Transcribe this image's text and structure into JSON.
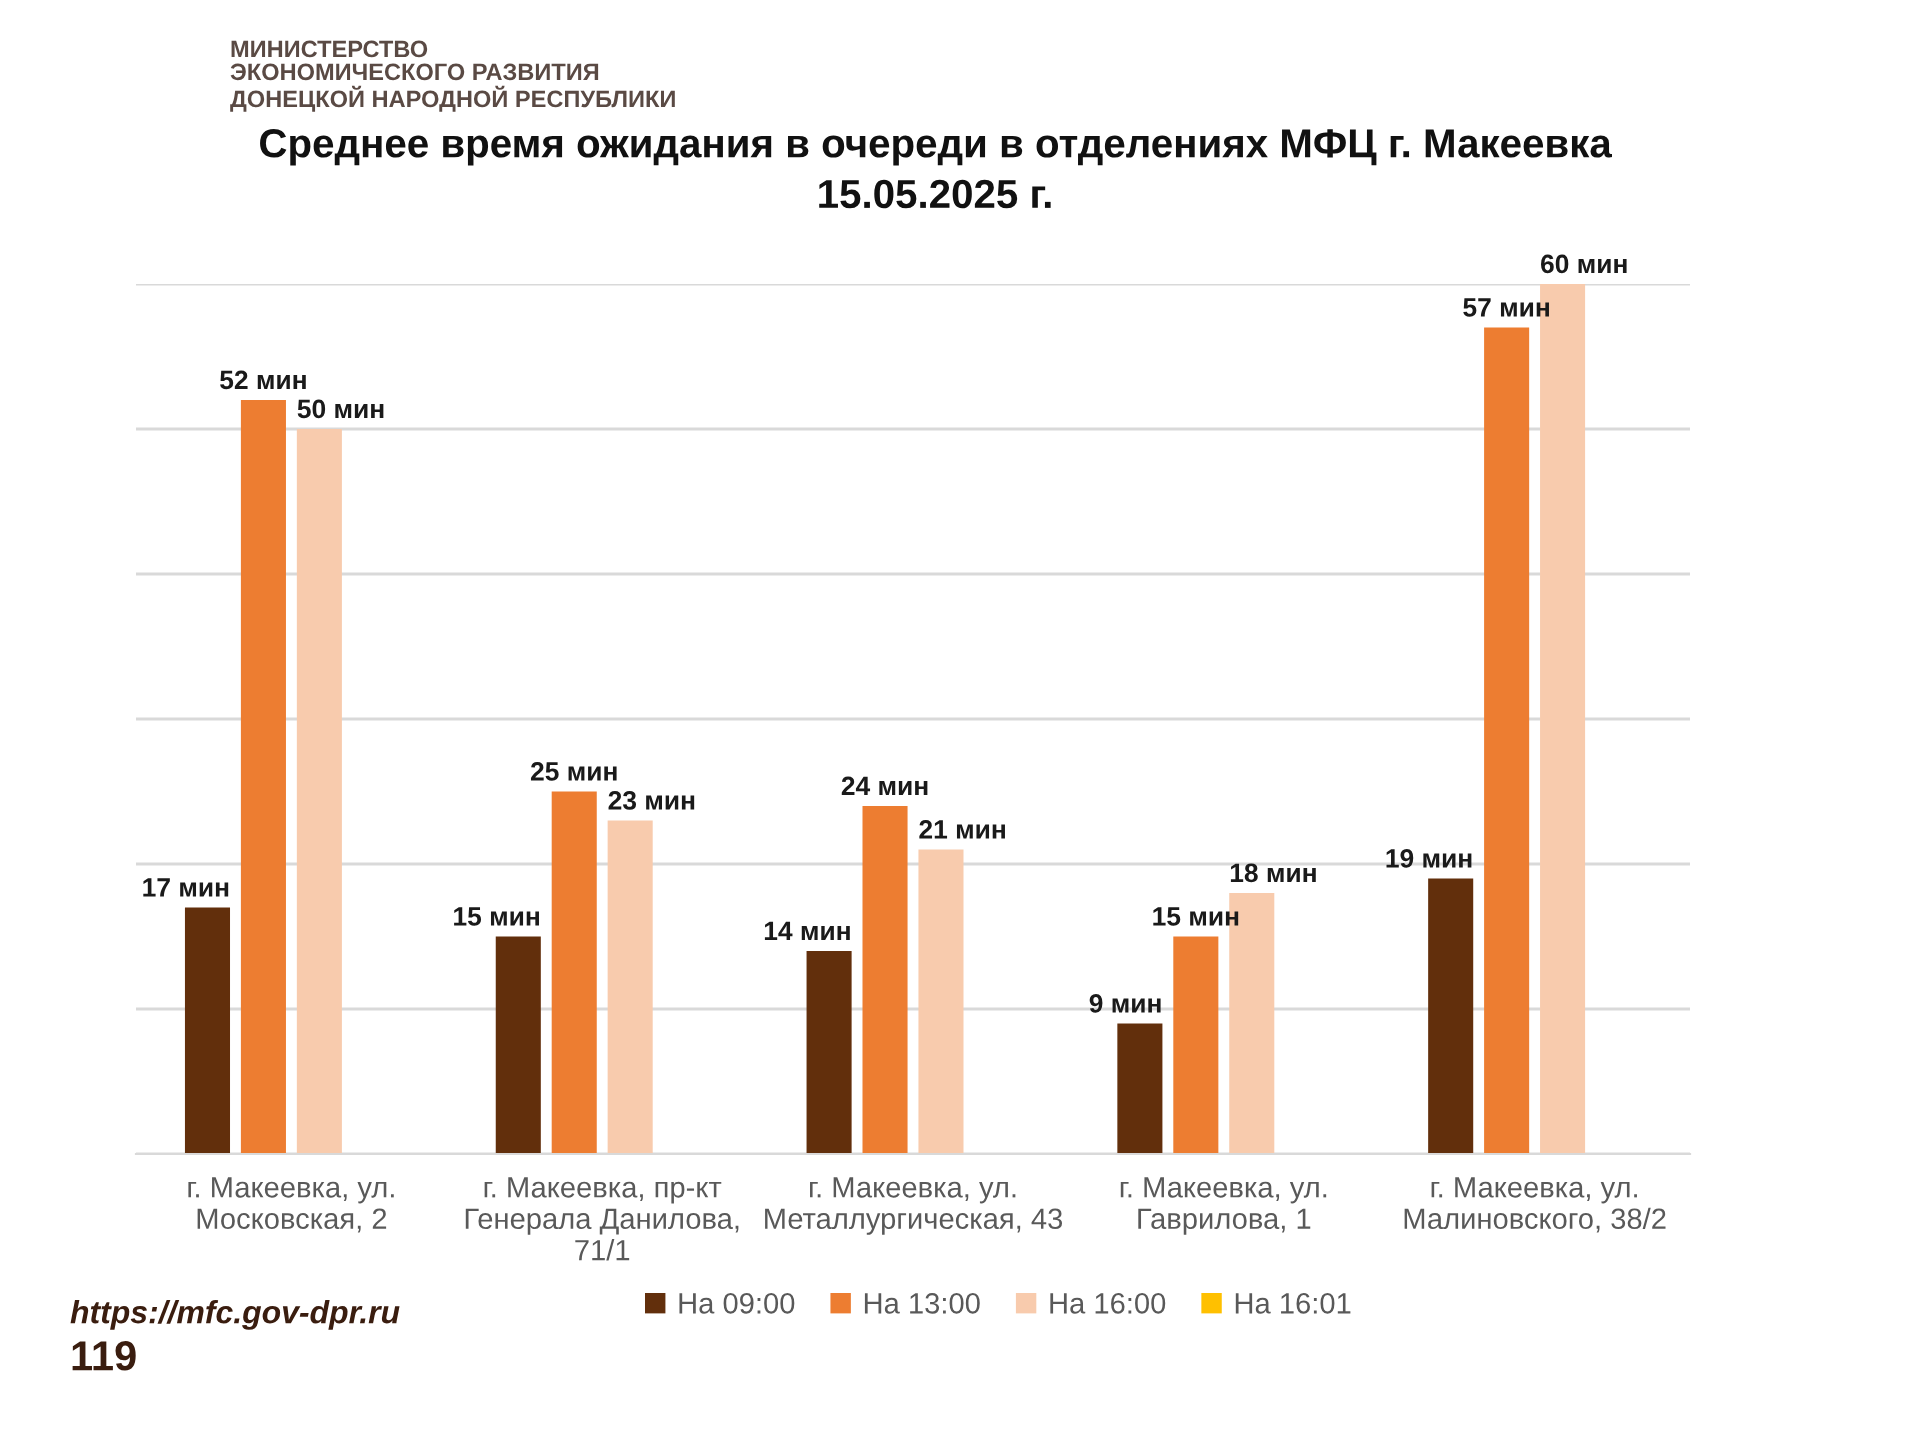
{
  "chart_data": {
    "type": "bar",
    "title": "Среднее время ожидания в очереди в отделениях МФЦ г. Макеевка\n15.05.2025 г.",
    "categories": [
      "г. Макеевка, ул.\nМосковская, 2",
      "г. Макеевка, пр-кт\nГенерала Данилова,\n71/1",
      "г. Макеевка, ул.\nМеталлургическая, 43",
      "г. Макеевка, ул.\nГаврилова, 1",
      "г. Макеевка, ул.\nМалиновского, 38/2"
    ],
    "series": [
      {
        "name": "На 09:00",
        "color": "#622f0c",
        "values": [
          17,
          15,
          14,
          9,
          19
        ],
        "value_labels": [
          "17 мин",
          "15 мин",
          "14 мин",
          "9 мин",
          "19 мин"
        ]
      },
      {
        "name": "На 13:00",
        "color": "#ed7d31",
        "values": [
          52,
          25,
          24,
          15,
          57
        ],
        "value_labels": [
          "52 мин",
          "25 мин",
          "24 мин",
          "15 мин",
          "57 мин"
        ]
      },
      {
        "name": "На 16:00",
        "color": "#f8cbad",
        "values": [
          50,
          23,
          21,
          18,
          60
        ],
        "value_labels": [
          "50 мин",
          "23 мин",
          "21 мин",
          "18 мин",
          "60 мин"
        ]
      },
      {
        "name": "На 16:01",
        "color": "#ffc000",
        "values": [
          null,
          null,
          null,
          null,
          null
        ]
      }
    ],
    "ylim": [
      0,
      60
    ],
    "yticks": [
      {
        "value": 0,
        "label": null
      },
      {
        "value": 10,
        "label": null
      },
      {
        "value": 20,
        "label": null
      },
      {
        "value": 30,
        "label": null
      },
      {
        "value": 40,
        "label": null
      },
      {
        "value": 50,
        "label": null
      },
      {
        "value": 60,
        "label": null
      }
    ],
    "tick_labels": "x",
    "grid": "y",
    "legend": "bottom",
    "annotations": [
      "МИНИСТЕРСТВО\nЭКОНОМИЧЕСКОГО РАЗВИТИЯ\nДОНЕЦКОЙ НАРОДНОЙ РЕСПУБЛИКИ",
      "https://mfc.gov-dpr.ru",
      "119"
    ]
  }
}
